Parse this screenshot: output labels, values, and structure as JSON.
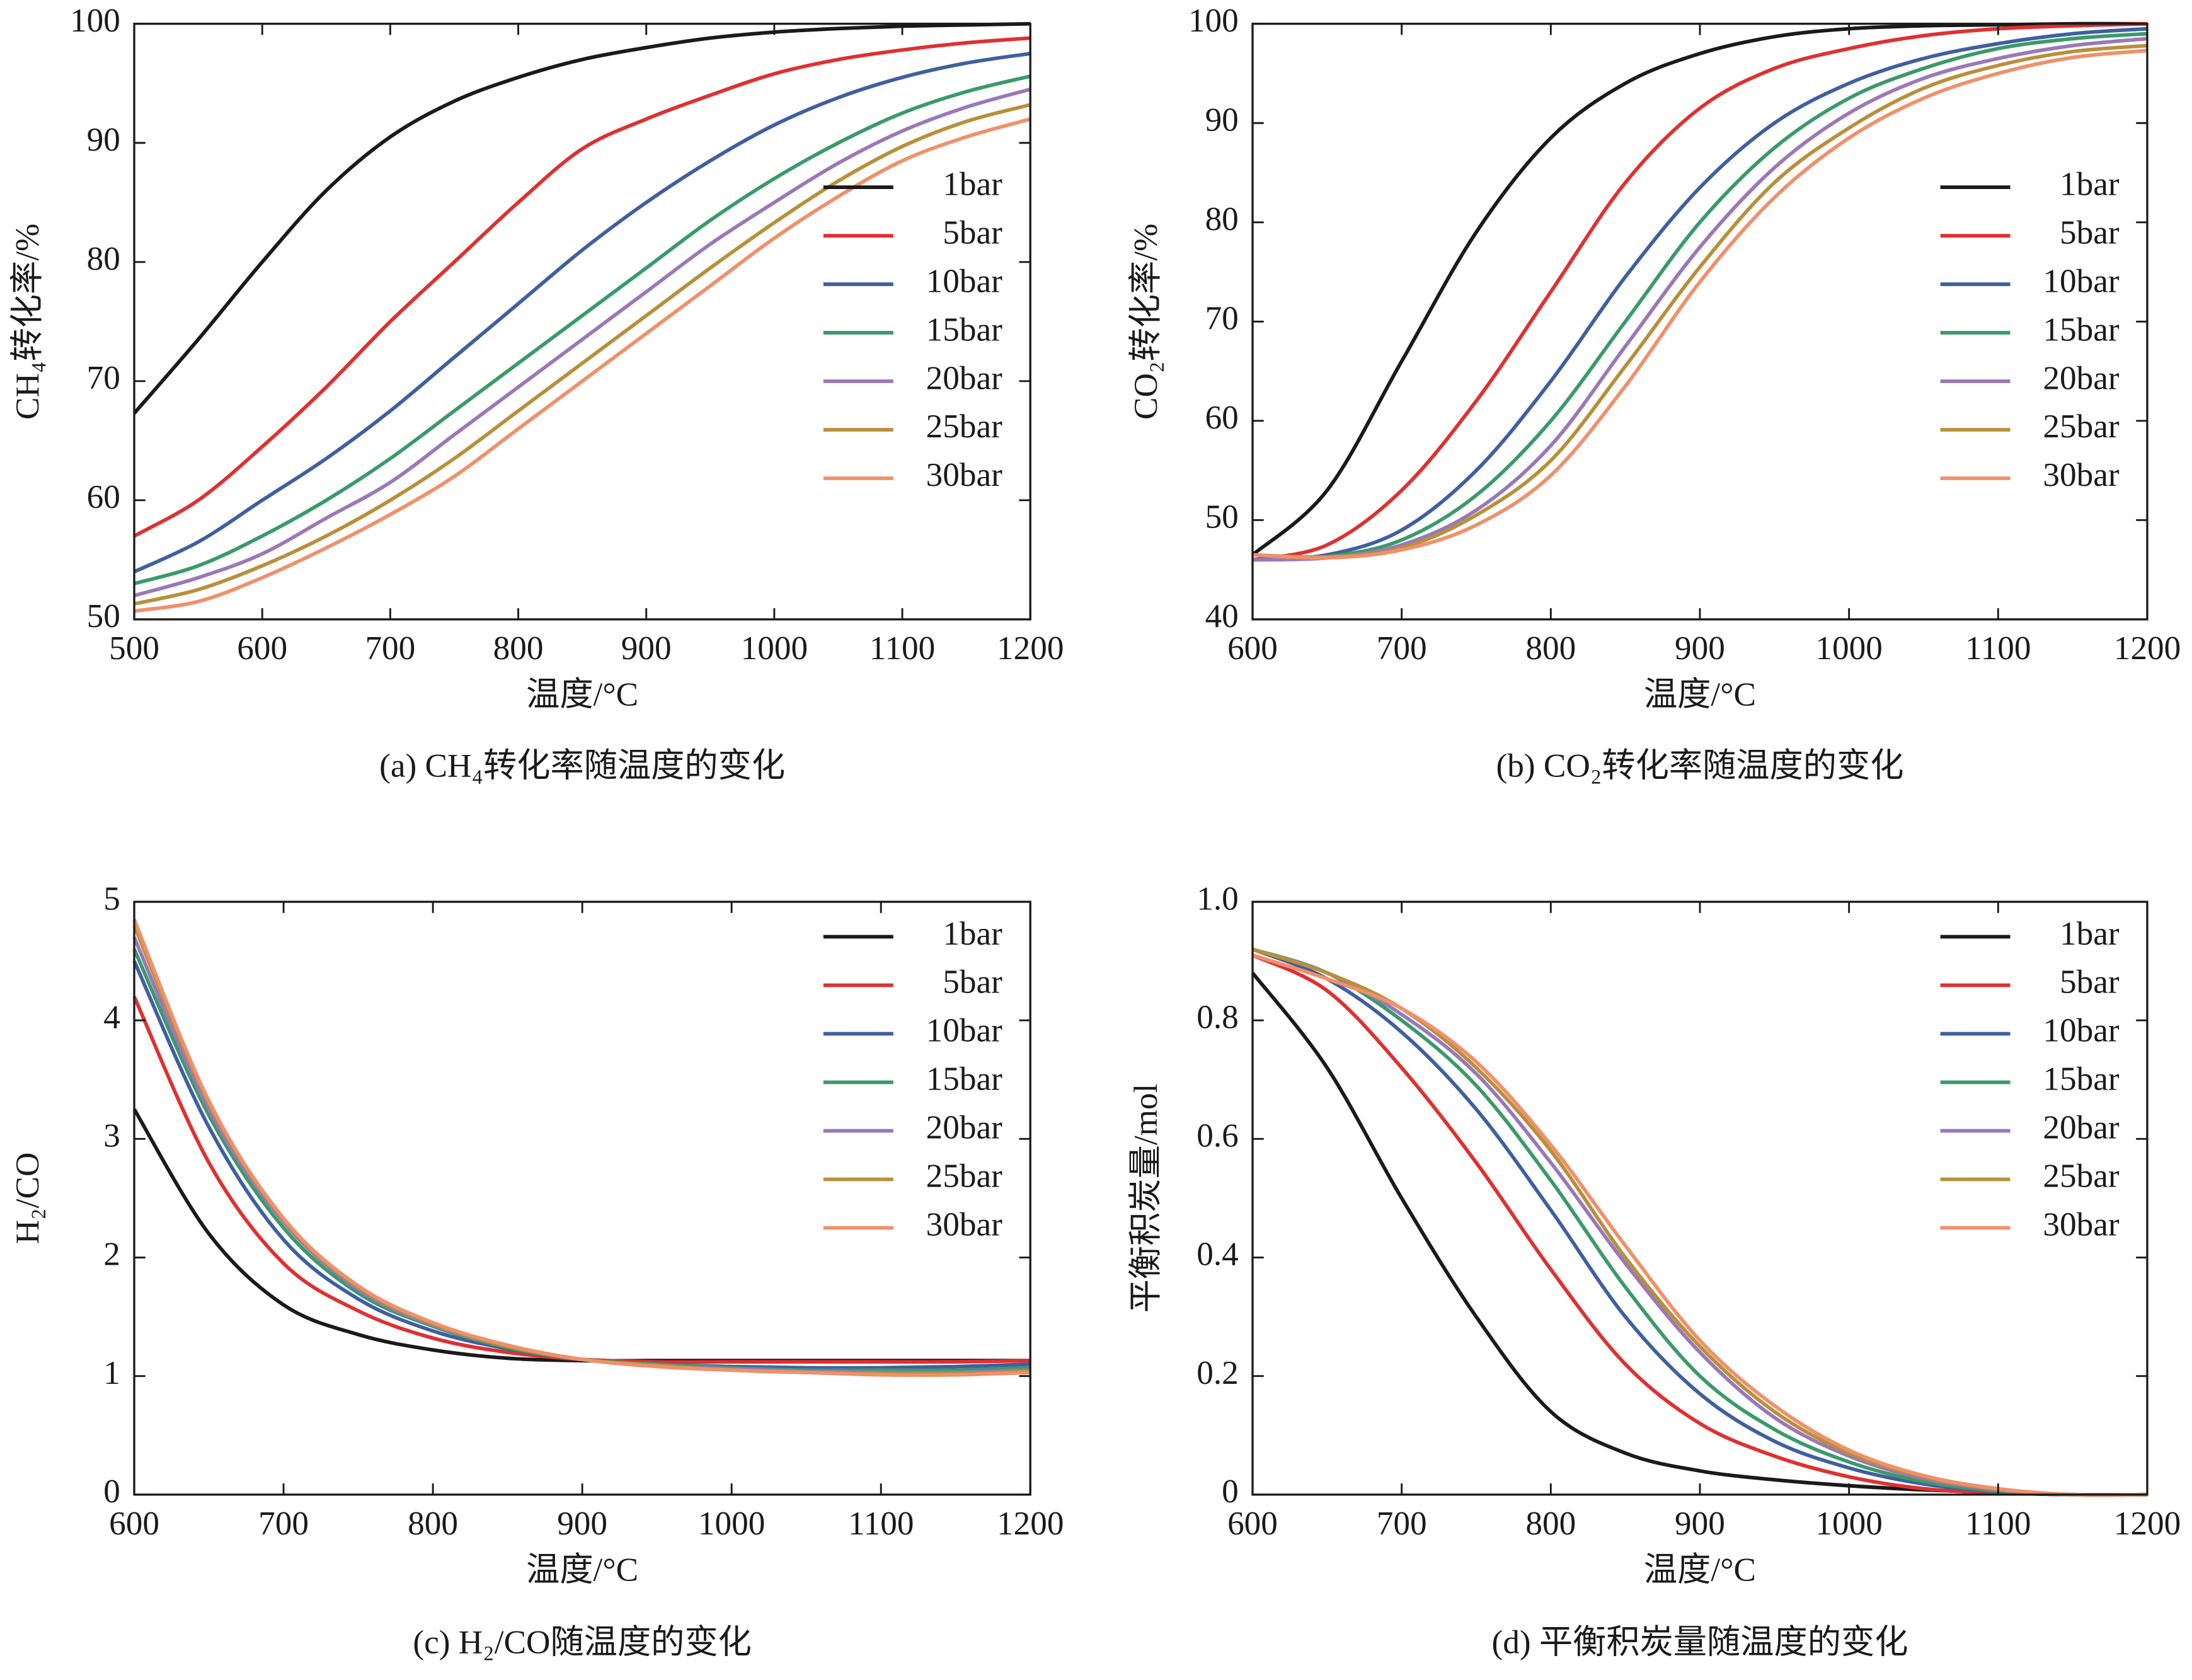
{
  "chart_data": [
    {
      "type": "line",
      "caption": "(a) CH₄转化率随温度的变化",
      "x_label": "温度/°C",
      "y_label": "CH₄转化率/%",
      "x": [
        500,
        550,
        600,
        650,
        700,
        750,
        800,
        850,
        900,
        950,
        1000,
        1050,
        1100,
        1150,
        1200
      ],
      "xlim": [
        500,
        1200
      ],
      "xticks": [
        500,
        600,
        700,
        800,
        900,
        1000,
        1100,
        1200
      ],
      "ylim": [
        50,
        100
      ],
      "yticks": [
        50,
        60,
        70,
        80,
        90,
        100
      ],
      "legend": "center right",
      "series": [
        {
          "name": "1bar",
          "color": "#1a1a1a",
          "values": [
            67.3,
            73.5,
            80,
            86,
            90.5,
            93.5,
            95.5,
            97,
            98,
            98.8,
            99.3,
            99.6,
            99.8,
            99.9,
            100
          ]
        },
        {
          "name": "5bar",
          "color": "#e03030",
          "values": [
            57,
            60,
            64.5,
            69.5,
            75,
            80,
            85,
            89.5,
            92,
            94,
            95.8,
            97,
            97.8,
            98.4,
            98.8
          ]
        },
        {
          "name": "10bar",
          "color": "#3f5fa0",
          "values": [
            54,
            56.5,
            60,
            63.5,
            67.5,
            72,
            76.5,
            81,
            85,
            88.5,
            91.5,
            93.8,
            95.5,
            96.7,
            97.5
          ]
        },
        {
          "name": "15bar",
          "color": "#3a9a6a",
          "values": [
            53,
            54.5,
            57,
            60,
            63.5,
            67.5,
            71.5,
            75.5,
            79.5,
            83.5,
            87,
            90,
            92.5,
            94.3,
            95.6
          ]
        },
        {
          "name": "20bar",
          "color": "#9a78b8",
          "values": [
            52,
            53.5,
            55.5,
            58.5,
            61.5,
            65.5,
            69.5,
            73.5,
            77.5,
            81.5,
            85,
            88.3,
            91,
            93,
            94.5
          ]
        },
        {
          "name": "25bar",
          "color": "#b8903a",
          "values": [
            51.3,
            52.5,
            54.5,
            57,
            60,
            63.5,
            67.5,
            71.5,
            75.5,
            79.5,
            83.3,
            86.8,
            89.7,
            91.8,
            93.2
          ]
        },
        {
          "name": "30bar",
          "color": "#f0906a",
          "values": [
            50.7,
            51.5,
            53.5,
            56,
            58.8,
            62,
            66,
            70,
            74,
            78,
            82,
            85.5,
            88.5,
            90.5,
            92
          ]
        }
      ]
    },
    {
      "type": "line",
      "caption": "(b) CO₂转化率随温度的变化",
      "x_label": "温度/°C",
      "y_label": "CO₂转化率/%",
      "x": [
        600,
        650,
        700,
        750,
        800,
        850,
        900,
        950,
        1000,
        1050,
        1100,
        1150,
        1200
      ],
      "xlim": [
        600,
        1200
      ],
      "xticks": [
        600,
        700,
        800,
        900,
        1000,
        1100,
        1200
      ],
      "ylim": [
        40,
        100
      ],
      "yticks": [
        40,
        50,
        60,
        70,
        80,
        90,
        100
      ],
      "legend": "center right",
      "series": [
        {
          "name": "1bar",
          "color": "#1a1a1a",
          "values": [
            46.5,
            53,
            66,
            79,
            88.5,
            94,
            97,
            98.7,
            99.5,
            99.8,
            99.9,
            100,
            100
          ]
        },
        {
          "name": "5bar",
          "color": "#e03030",
          "values": [
            46,
            47.5,
            53,
            62,
            73,
            84,
            91.5,
            95.5,
            97.5,
            98.8,
            99.5,
            99.8,
            100
          ]
        },
        {
          "name": "10bar",
          "color": "#3f5fa0",
          "values": [
            46,
            46.5,
            49,
            55,
            64,
            74.5,
            83.5,
            90,
            94,
            96.5,
            98,
            99,
            99.5
          ]
        },
        {
          "name": "15bar",
          "color": "#3a9a6a",
          "values": [
            46,
            46.3,
            48,
            52.5,
            60,
            70,
            80,
            87.5,
            92.5,
            95.5,
            97.5,
            98.5,
            99
          ]
        },
        {
          "name": "20bar",
          "color": "#9a78b8",
          "values": [
            46,
            46.2,
            47.5,
            51,
            57.5,
            67.5,
            77.5,
            85.5,
            91,
            94.5,
            96.5,
            97.8,
            98.5
          ]
        },
        {
          "name": "25bar",
          "color": "#b8903a",
          "values": [
            46.5,
            46.3,
            47.2,
            50.5,
            56,
            65.5,
            75.5,
            84,
            89.5,
            93.5,
            95.8,
            97.2,
            97.8
          ]
        },
        {
          "name": "30bar",
          "color": "#f0906a",
          "values": [
            46.5,
            46.2,
            47,
            49.5,
            54.5,
            63.5,
            74,
            82.5,
            88.5,
            92.5,
            95,
            96.6,
            97.3
          ]
        }
      ]
    },
    {
      "type": "line",
      "caption": "(c) H₂/CO随温度的变化",
      "x_label": "温度/°C",
      "y_label": "H₂/CO",
      "x": [
        600,
        650,
        700,
        750,
        800,
        850,
        900,
        950,
        1000,
        1050,
        1100,
        1150,
        1200
      ],
      "xlim": [
        600,
        1200
      ],
      "xticks": [
        600,
        700,
        800,
        900,
        1000,
        1100,
        1200
      ],
      "ylim": [
        0,
        5
      ],
      "yticks": [
        0,
        1,
        2,
        3,
        4,
        5
      ],
      "legend": "upper right",
      "series": [
        {
          "name": "1bar",
          "color": "#1a1a1a",
          "values": [
            3.25,
            2.2,
            1.6,
            1.35,
            1.22,
            1.15,
            1.13,
            1.13,
            1.13,
            1.13,
            1.13,
            1.13,
            1.13
          ]
        },
        {
          "name": "5bar",
          "color": "#e03030",
          "values": [
            4.2,
            2.8,
            1.95,
            1.55,
            1.32,
            1.2,
            1.14,
            1.12,
            1.12,
            1.12,
            1.12,
            1.12,
            1.13
          ]
        },
        {
          "name": "10bar",
          "color": "#3f5fa0",
          "values": [
            4.5,
            3.1,
            2.15,
            1.65,
            1.38,
            1.23,
            1.14,
            1.1,
            1.08,
            1.07,
            1.07,
            1.08,
            1.1
          ]
        },
        {
          "name": "15bar",
          "color": "#3a9a6a",
          "values": [
            4.6,
            3.2,
            2.25,
            1.7,
            1.42,
            1.24,
            1.14,
            1.1,
            1.07,
            1.05,
            1.05,
            1.05,
            1.07
          ]
        },
        {
          "name": "20bar",
          "color": "#9a78b8",
          "values": [
            4.7,
            3.25,
            2.3,
            1.73,
            1.43,
            1.25,
            1.14,
            1.09,
            1.06,
            1.04,
            1.03,
            1.03,
            1.05
          ]
        },
        {
          "name": "25bar",
          "color": "#b8903a",
          "values": [
            4.8,
            3.3,
            2.32,
            1.75,
            1.44,
            1.25,
            1.14,
            1.09,
            1.05,
            1.03,
            1.02,
            1.02,
            1.04
          ]
        },
        {
          "name": "30bar",
          "color": "#f0906a",
          "values": [
            4.85,
            3.32,
            2.33,
            1.76,
            1.45,
            1.26,
            1.14,
            1.08,
            1.05,
            1.03,
            1.01,
            1.01,
            1.03
          ]
        }
      ]
    },
    {
      "type": "line",
      "caption": "(d) 平衡积炭量随温度的变化",
      "x_label": "温度/°C",
      "y_label": "平衡积炭量/mol",
      "x": [
        600,
        650,
        700,
        750,
        800,
        850,
        900,
        950,
        1000,
        1050,
        1100,
        1150,
        1200
      ],
      "xlim": [
        600,
        1200
      ],
      "xticks": [
        600,
        700,
        800,
        900,
        1000,
        1100,
        1200
      ],
      "ylim": [
        0,
        1
      ],
      "yticks": [
        0,
        0.2,
        0.4,
        0.6,
        0.8,
        {
          "value": 1,
          "label": "1.0"
        }
      ],
      "legend": "upper right",
      "series": [
        {
          "name": "1bar",
          "color": "#1a1a1a",
          "values": [
            0.88,
            0.72,
            0.5,
            0.3,
            0.14,
            0.07,
            0.04,
            0.025,
            0.015,
            0.008,
            0.003,
            0,
            0
          ]
        },
        {
          "name": "5bar",
          "color": "#e03030",
          "values": [
            0.91,
            0.85,
            0.72,
            0.56,
            0.38,
            0.22,
            0.12,
            0.065,
            0.03,
            0.01,
            0.003,
            0,
            0
          ]
        },
        {
          "name": "10bar",
          "color": "#3f5fa0",
          "values": [
            0.92,
            0.87,
            0.78,
            0.65,
            0.48,
            0.3,
            0.17,
            0.09,
            0.045,
            0.018,
            0.005,
            0,
            0
          ]
        },
        {
          "name": "15bar",
          "color": "#3a9a6a",
          "values": [
            0.92,
            0.88,
            0.8,
            0.69,
            0.53,
            0.35,
            0.2,
            0.11,
            0.055,
            0.022,
            0.006,
            0,
            0
          ]
        },
        {
          "name": "20bar",
          "color": "#9a78b8",
          "values": [
            0.92,
            0.88,
            0.81,
            0.71,
            0.56,
            0.39,
            0.24,
            0.13,
            0.065,
            0.027,
            0.008,
            0,
            0
          ]
        },
        {
          "name": "25bar",
          "color": "#b8903a",
          "values": [
            0.92,
            0.88,
            0.82,
            0.72,
            0.58,
            0.4,
            0.25,
            0.14,
            0.07,
            0.03,
            0.009,
            0,
            0
          ]
        },
        {
          "name": "30bar",
          "color": "#f0906a",
          "values": [
            0.91,
            0.87,
            0.82,
            0.73,
            0.59,
            0.42,
            0.26,
            0.15,
            0.075,
            0.032,
            0.01,
            0,
            0
          ]
        }
      ]
    }
  ]
}
